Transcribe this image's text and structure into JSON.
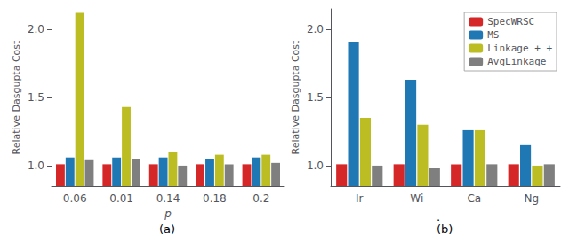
{
  "chart_data": [
    {
      "type": "bar",
      "xlabel": "p",
      "ylabel": "Relative Dasgupta Cost",
      "categories": [
        "0.06",
        "0.01",
        "0.14",
        "0.18",
        "0.2"
      ],
      "series": [
        {
          "name": "SpecWRSC",
          "color": "#d62728",
          "values": [
            1.01,
            1.01,
            1.01,
            1.01,
            1.01
          ]
        },
        {
          "name": "MS",
          "color": "#1f77b4",
          "values": [
            1.06,
            1.06,
            1.06,
            1.05,
            1.06
          ]
        },
        {
          "name": "Linkage + +",
          "color": "#bcbd22",
          "values": [
            2.12,
            1.43,
            1.1,
            1.08,
            1.08
          ]
        },
        {
          "name": "AvgLinkage",
          "color": "#7f7f7f",
          "values": [
            1.04,
            1.05,
            1.0,
            1.01,
            1.02
          ]
        }
      ],
      "ylim": [
        0.85,
        2.15
      ],
      "yticks": [
        {
          "value": 1.0,
          "label": "1.0"
        },
        {
          "value": 1.5,
          "label": "1.5"
        },
        {
          "value": 2.0,
          "label": "2.0"
        }
      ],
      "grid": false,
      "annotations": [
        "(a)"
      ]
    },
    {
      "type": "bar",
      "ylabel": "Relative Dasgupta Cost",
      "categories": [
        "Ir",
        "Wi",
        "Ca",
        "Ng"
      ],
      "series": [
        {
          "name": "SpecWRSC",
          "color": "#d62728",
          "values": [
            1.01,
            1.01,
            1.01,
            1.01
          ]
        },
        {
          "name": "MS",
          "color": "#1f77b4",
          "values": [
            1.91,
            1.63,
            1.26,
            1.15
          ]
        },
        {
          "name": "Linkage + +",
          "color": "#bcbd22",
          "values": [
            1.35,
            1.3,
            1.26,
            1.0
          ]
        },
        {
          "name": "AvgLinkage",
          "color": "#7f7f7f",
          "values": [
            1.0,
            0.98,
            1.01,
            1.01
          ]
        }
      ],
      "ylim": [
        0.85,
        2.15
      ],
      "yticks": [
        {
          "value": 1.0,
          "label": "1.0"
        },
        {
          "value": 1.5,
          "label": "1.5"
        },
        {
          "value": 2.0,
          "label": "2.0"
        }
      ],
      "grid": false,
      "legend": "upper right",
      "annotations": [
        ".",
        "(b)"
      ]
    }
  ]
}
